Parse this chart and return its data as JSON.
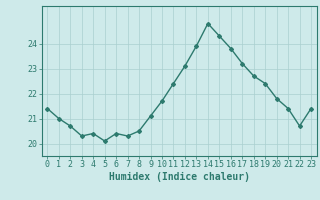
{
  "x": [
    0,
    1,
    2,
    3,
    4,
    5,
    6,
    7,
    8,
    9,
    10,
    11,
    12,
    13,
    14,
    15,
    16,
    17,
    18,
    19,
    20,
    21,
    22,
    23
  ],
  "y": [
    21.4,
    21.0,
    20.7,
    20.3,
    20.4,
    20.1,
    20.4,
    20.3,
    20.5,
    21.1,
    21.7,
    22.4,
    23.1,
    23.9,
    24.8,
    24.3,
    23.8,
    23.2,
    22.7,
    22.4,
    21.8,
    21.4,
    20.7,
    21.4
  ],
  "xlabel": "Humidex (Indice chaleur)",
  "ylim": [
    19.5,
    25.5
  ],
  "yticks": [
    20,
    21,
    22,
    23,
    24
  ],
  "ytick_labels": [
    "20",
    "21",
    "22",
    "23",
    "24"
  ],
  "line_color": "#2d7a6e",
  "marker": "D",
  "marker_size": 2.0,
  "bg_color": "#ceeaea",
  "grid_color": "#aacfcf",
  "axis_color": "#2d7a6e",
  "xlabel_fontsize": 7,
  "tick_fontsize": 6,
  "line_width": 1.0
}
